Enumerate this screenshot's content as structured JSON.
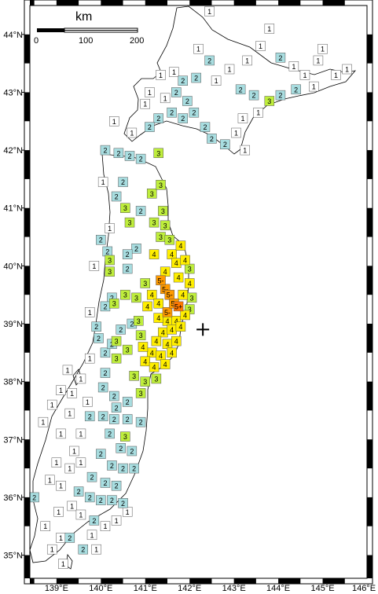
{
  "map": {
    "lat_labels": [
      "44°N",
      "43°N",
      "42°N",
      "41°N",
      "40°N",
      "39°N",
      "38°N",
      "37°N",
      "36°N",
      "35°N"
    ],
    "lon_labels": [
      "139°E",
      "140°E",
      "141°E",
      "142°E",
      "143°E",
      "144°E",
      "145°E",
      "146°E"
    ],
    "lat_range": [
      34.6,
      44.5
    ],
    "lon_range": [
      138.4,
      146.0
    ]
  },
  "scale_bar": {
    "title": "km",
    "labels": [
      "0",
      "100",
      "200"
    ]
  },
  "epicenter": {
    "lon": 142.3,
    "lat": 38.9
  },
  "intensity_colors": {
    "1": "#ffffff",
    "2": "#a8dde0",
    "3": "#bfee3c",
    "4": "#ffee00",
    "5-": "#ff9a00",
    "5+": "#ff7800"
  },
  "stations": [
    {
      "lon": 141.45,
      "lat": 39.6,
      "i": "5-"
    },
    {
      "lon": 141.55,
      "lat": 39.5,
      "i": "5-"
    },
    {
      "lon": 141.5,
      "lat": 39.2,
      "i": "5-"
    },
    {
      "lon": 141.75,
      "lat": 39.3,
      "i": "5+"
    },
    {
      "lon": 141.65,
      "lat": 39.35,
      "i": "5-"
    },
    {
      "lon": 141.35,
      "lat": 39.75,
      "i": "5-"
    },
    {
      "lon": 141.6,
      "lat": 40.2,
      "i": "4"
    },
    {
      "lon": 141.8,
      "lat": 40.35,
      "i": "4"
    },
    {
      "lon": 141.7,
      "lat": 40.05,
      "i": "4"
    },
    {
      "lon": 141.9,
      "lat": 40.1,
      "i": "4"
    },
    {
      "lon": 141.45,
      "lat": 39.9,
      "i": "4"
    },
    {
      "lon": 141.75,
      "lat": 39.8,
      "i": "4"
    },
    {
      "lon": 142.0,
      "lat": 39.7,
      "i": "4"
    },
    {
      "lon": 141.5,
      "lat": 39.05,
      "i": "4"
    },
    {
      "lon": 141.3,
      "lat": 39.1,
      "i": "4"
    },
    {
      "lon": 141.7,
      "lat": 39.05,
      "i": "4"
    },
    {
      "lon": 141.9,
      "lat": 39.15,
      "i": "4"
    },
    {
      "lon": 141.4,
      "lat": 38.85,
      "i": "4"
    },
    {
      "lon": 141.6,
      "lat": 38.9,
      "i": "4"
    },
    {
      "lon": 141.8,
      "lat": 38.95,
      "i": "4"
    },
    {
      "lon": 141.25,
      "lat": 38.7,
      "i": "4"
    },
    {
      "lon": 141.5,
      "lat": 38.65,
      "i": "4"
    },
    {
      "lon": 141.7,
      "lat": 38.7,
      "i": "4"
    },
    {
      "lon": 141.15,
      "lat": 38.5,
      "i": "4"
    },
    {
      "lon": 141.35,
      "lat": 38.45,
      "i": "4"
    },
    {
      "lon": 141.6,
      "lat": 38.5,
      "i": "4"
    },
    {
      "lon": 141.0,
      "lat": 38.35,
      "i": "4"
    },
    {
      "lon": 141.2,
      "lat": 38.25,
      "i": "4"
    },
    {
      "lon": 141.45,
      "lat": 38.3,
      "i": "4"
    },
    {
      "lon": 141.05,
      "lat": 39.3,
      "i": "4"
    },
    {
      "lon": 141.2,
      "lat": 40.2,
      "i": "4"
    },
    {
      "lon": 141.85,
      "lat": 39.5,
      "i": "4"
    },
    {
      "lon": 141.15,
      "lat": 39.5,
      "i": "4"
    },
    {
      "lon": 141.3,
      "lat": 39.35,
      "i": "4"
    },
    {
      "lon": 140.95,
      "lat": 38.6,
      "i": "4"
    },
    {
      "lon": 141.35,
      "lat": 40.5,
      "i": "3"
    },
    {
      "lon": 141.2,
      "lat": 40.75,
      "i": "3"
    },
    {
      "lon": 141.4,
      "lat": 40.95,
      "i": "3"
    },
    {
      "lon": 141.15,
      "lat": 41.25,
      "i": "3"
    },
    {
      "lon": 141.35,
      "lat": 41.4,
      "i": "3"
    },
    {
      "lon": 141.3,
      "lat": 41.95,
      "i": "3"
    },
    {
      "lon": 140.55,
      "lat": 41.0,
      "i": "3"
    },
    {
      "lon": 140.65,
      "lat": 40.75,
      "i": "3"
    },
    {
      "lon": 141.45,
      "lat": 40.7,
      "i": "3"
    },
    {
      "lon": 140.2,
      "lat": 40.1,
      "i": "3"
    },
    {
      "lon": 140.2,
      "lat": 39.9,
      "i": "3"
    },
    {
      "lon": 140.55,
      "lat": 39.5,
      "i": "3"
    },
    {
      "lon": 140.8,
      "lat": 39.45,
      "i": "3"
    },
    {
      "lon": 140.3,
      "lat": 39.35,
      "i": "3"
    },
    {
      "lon": 141.0,
      "lat": 39.7,
      "i": "3"
    },
    {
      "lon": 142.0,
      "lat": 39.95,
      "i": "3"
    },
    {
      "lon": 142.05,
      "lat": 39.45,
      "i": "3"
    },
    {
      "lon": 142.0,
      "lat": 39.25,
      "i": "3"
    },
    {
      "lon": 140.85,
      "lat": 39.05,
      "i": "3"
    },
    {
      "lon": 140.9,
      "lat": 38.8,
      "i": "3"
    },
    {
      "lon": 140.6,
      "lat": 38.55,
      "i": "3"
    },
    {
      "lon": 140.35,
      "lat": 38.4,
      "i": "3"
    },
    {
      "lon": 140.75,
      "lat": 38.1,
      "i": "3"
    },
    {
      "lon": 141.0,
      "lat": 38.0,
      "i": "3"
    },
    {
      "lon": 140.9,
      "lat": 37.8,
      "i": "3"
    },
    {
      "lon": 140.55,
      "lat": 37.05,
      "i": "3"
    },
    {
      "lon": 143.8,
      "lat": 42.85,
      "i": "3"
    },
    {
      "lon": 141.55,
      "lat": 40.45,
      "i": "3"
    },
    {
      "lon": 141.25,
      "lat": 38.05,
      "i": "3"
    },
    {
      "lon": 140.35,
      "lat": 38.7,
      "i": "3"
    },
    {
      "lon": 140.1,
      "lat": 42.0,
      "i": "2"
    },
    {
      "lon": 140.4,
      "lat": 41.95,
      "i": "2"
    },
    {
      "lon": 140.65,
      "lat": 41.9,
      "i": "2"
    },
    {
      "lon": 140.9,
      "lat": 41.85,
      "i": "2"
    },
    {
      "lon": 140.5,
      "lat": 41.45,
      "i": "2"
    },
    {
      "lon": 140.35,
      "lat": 41.2,
      "i": "2"
    },
    {
      "lon": 140.0,
      "lat": 40.45,
      "i": "2"
    },
    {
      "lon": 140.15,
      "lat": 40.25,
      "i": "2"
    },
    {
      "lon": 140.25,
      "lat": 39.45,
      "i": "2"
    },
    {
      "lon": 140.1,
      "lat": 39.3,
      "i": "2"
    },
    {
      "lon": 139.9,
      "lat": 38.95,
      "i": "2"
    },
    {
      "lon": 139.95,
      "lat": 38.75,
      "i": "2"
    },
    {
      "lon": 140.1,
      "lat": 38.5,
      "i": "2"
    },
    {
      "lon": 140.1,
      "lat": 38.15,
      "i": "2"
    },
    {
      "lon": 140.05,
      "lat": 37.9,
      "i": "2"
    },
    {
      "lon": 140.3,
      "lat": 37.75,
      "i": "2"
    },
    {
      "lon": 139.75,
      "lat": 37.4,
      "i": "2"
    },
    {
      "lon": 140.05,
      "lat": 37.4,
      "i": "2"
    },
    {
      "lon": 140.3,
      "lat": 37.35,
      "i": "2"
    },
    {
      "lon": 140.6,
      "lat": 37.35,
      "i": "2"
    },
    {
      "lon": 140.9,
      "lat": 37.3,
      "i": "2"
    },
    {
      "lon": 140.2,
      "lat": 37.1,
      "i": "2"
    },
    {
      "lon": 140.45,
      "lat": 36.85,
      "i": "2"
    },
    {
      "lon": 140.7,
      "lat": 36.8,
      "i": "2"
    },
    {
      "lon": 140.0,
      "lat": 36.75,
      "i": "2"
    },
    {
      "lon": 140.25,
      "lat": 36.55,
      "i": "2"
    },
    {
      "lon": 140.5,
      "lat": 36.5,
      "i": "2"
    },
    {
      "lon": 140.75,
      "lat": 36.5,
      "i": "2"
    },
    {
      "lon": 139.8,
      "lat": 36.35,
      "i": "2"
    },
    {
      "lon": 140.1,
      "lat": 36.25,
      "i": "2"
    },
    {
      "lon": 140.35,
      "lat": 36.2,
      "i": "2"
    },
    {
      "lon": 139.5,
      "lat": 36.1,
      "i": "2"
    },
    {
      "lon": 139.75,
      "lat": 36.0,
      "i": "2"
    },
    {
      "lon": 140.0,
      "lat": 35.95,
      "i": "2"
    },
    {
      "lon": 140.25,
      "lat": 35.95,
      "i": "2"
    },
    {
      "lon": 140.5,
      "lat": 35.9,
      "i": "2"
    },
    {
      "lon": 138.5,
      "lat": 36.0,
      "i": "2"
    },
    {
      "lon": 139.3,
      "lat": 35.3,
      "i": "2"
    },
    {
      "lon": 139.6,
      "lat": 35.1,
      "i": "2"
    },
    {
      "lon": 140.6,
      "lat": 39.95,
      "i": "2"
    },
    {
      "lon": 140.8,
      "lat": 40.3,
      "i": "2"
    },
    {
      "lon": 140.9,
      "lat": 40.95,
      "i": "2"
    },
    {
      "lon": 140.6,
      "lat": 40.2,
      "i": "2"
    },
    {
      "lon": 141.6,
      "lat": 42.65,
      "i": "2"
    },
    {
      "lon": 141.85,
      "lat": 42.55,
      "i": "2"
    },
    {
      "lon": 142.1,
      "lat": 42.65,
      "i": "2"
    },
    {
      "lon": 142.35,
      "lat": 42.4,
      "i": "2"
    },
    {
      "lon": 142.5,
      "lat": 42.2,
      "i": "2"
    },
    {
      "lon": 142.8,
      "lat": 42.1,
      "i": "2"
    },
    {
      "lon": 141.95,
      "lat": 42.85,
      "i": "2"
    },
    {
      "lon": 141.7,
      "lat": 43.0,
      "i": "2"
    },
    {
      "lon": 141.85,
      "lat": 43.2,
      "i": "2"
    },
    {
      "lon": 142.15,
      "lat": 43.25,
      "i": "2"
    },
    {
      "lon": 142.45,
      "lat": 43.55,
      "i": "2"
    },
    {
      "lon": 143.15,
      "lat": 43.05,
      "i": "2"
    },
    {
      "lon": 143.45,
      "lat": 42.95,
      "i": "2"
    },
    {
      "lon": 144.05,
      "lat": 42.95,
      "i": "2"
    },
    {
      "lon": 144.4,
      "lat": 43.05,
      "i": "2"
    },
    {
      "lon": 144.05,
      "lat": 43.6,
      "i": "2"
    },
    {
      "lon": 141.3,
      "lat": 42.55,
      "i": "2"
    },
    {
      "lon": 141.1,
      "lat": 42.4,
      "i": "2"
    },
    {
      "lon": 140.7,
      "lat": 39.0,
      "i": "2"
    },
    {
      "lon": 140.45,
      "lat": 38.9,
      "i": "2"
    },
    {
      "lon": 140.6,
      "lat": 37.65,
      "i": "2"
    },
    {
      "lon": 140.25,
      "lat": 38.65,
      "i": "2"
    },
    {
      "lon": 140.35,
      "lat": 37.55,
      "i": "2"
    },
    {
      "lon": 139.85,
      "lat": 35.6,
      "i": "2"
    },
    {
      "lon": 142.6,
      "lat": 43.2,
      "i": "1"
    },
    {
      "lon": 142.9,
      "lat": 43.4,
      "i": "1"
    },
    {
      "lon": 143.3,
      "lat": 43.55,
      "i": "1"
    },
    {
      "lon": 143.6,
      "lat": 43.8,
      "i": "1"
    },
    {
      "lon": 144.35,
      "lat": 43.45,
      "i": "1"
    },
    {
      "lon": 144.6,
      "lat": 43.3,
      "i": "1"
    },
    {
      "lon": 144.9,
      "lat": 43.55,
      "i": "1"
    },
    {
      "lon": 145.3,
      "lat": 43.3,
      "i": "1"
    },
    {
      "lon": 145.55,
      "lat": 43.4,
      "i": "1"
    },
    {
      "lon": 143.8,
      "lat": 44.1,
      "i": "1"
    },
    {
      "lon": 142.45,
      "lat": 44.4,
      "i": "1"
    },
    {
      "lon": 142.2,
      "lat": 43.75,
      "i": "1"
    },
    {
      "lon": 141.65,
      "lat": 43.35,
      "i": "1"
    },
    {
      "lon": 141.45,
      "lat": 42.9,
      "i": "1"
    },
    {
      "lon": 143.05,
      "lat": 42.3,
      "i": "1"
    },
    {
      "lon": 143.25,
      "lat": 42.0,
      "i": "1"
    },
    {
      "lon": 143.2,
      "lat": 42.55,
      "i": "1"
    },
    {
      "lon": 143.55,
      "lat": 42.65,
      "i": "1"
    },
    {
      "lon": 144.8,
      "lat": 43.1,
      "i": "1"
    },
    {
      "lon": 145.0,
      "lat": 43.75,
      "i": "1"
    },
    {
      "lon": 140.3,
      "lat": 42.5,
      "i": "1"
    },
    {
      "lon": 140.7,
      "lat": 42.3,
      "i": "1"
    },
    {
      "lon": 139.85,
      "lat": 40.0,
      "i": "1"
    },
    {
      "lon": 140.2,
      "lat": 40.65,
      "i": "1"
    },
    {
      "lon": 139.75,
      "lat": 38.4,
      "i": "1"
    },
    {
      "lon": 139.55,
      "lat": 38.05,
      "i": "1"
    },
    {
      "lon": 139.35,
      "lat": 37.8,
      "i": "1"
    },
    {
      "lon": 139.7,
      "lat": 37.65,
      "i": "1"
    },
    {
      "lon": 139.3,
      "lat": 37.45,
      "i": "1"
    },
    {
      "lon": 139.55,
      "lat": 37.1,
      "i": "1"
    },
    {
      "lon": 139.1,
      "lat": 37.1,
      "i": "1"
    },
    {
      "lon": 139.4,
      "lat": 36.8,
      "i": "1"
    },
    {
      "lon": 139.0,
      "lat": 36.6,
      "i": "1"
    },
    {
      "lon": 139.3,
      "lat": 36.5,
      "i": "1"
    },
    {
      "lon": 139.55,
      "lat": 36.6,
      "i": "1"
    },
    {
      "lon": 138.85,
      "lat": 36.3,
      "i": "1"
    },
    {
      "lon": 139.1,
      "lat": 36.2,
      "i": "1"
    },
    {
      "lon": 139.35,
      "lat": 35.85,
      "i": "1"
    },
    {
      "lon": 139.05,
      "lat": 35.75,
      "i": "1"
    },
    {
      "lon": 139.55,
      "lat": 35.7,
      "i": "1"
    },
    {
      "lon": 139.8,
      "lat": 35.35,
      "i": "1"
    },
    {
      "lon": 140.1,
      "lat": 35.5,
      "i": "1"
    },
    {
      "lon": 140.35,
      "lat": 35.6,
      "i": "1"
    },
    {
      "lon": 140.6,
      "lat": 35.75,
      "i": "1"
    },
    {
      "lon": 139.1,
      "lat": 35.3,
      "i": "1"
    },
    {
      "lon": 138.9,
      "lat": 35.1,
      "i": "1"
    },
    {
      "lon": 139.15,
      "lat": 34.85,
      "i": "1"
    },
    {
      "lon": 138.75,
      "lat": 35.5,
      "i": "1"
    },
    {
      "lon": 139.9,
      "lat": 35.1,
      "i": "1"
    },
    {
      "lon": 138.7,
      "lat": 37.3,
      "i": "1"
    },
    {
      "lon": 138.9,
      "lat": 37.6,
      "i": "1"
    },
    {
      "lon": 139.1,
      "lat": 37.85,
      "i": "1"
    },
    {
      "lon": 139.25,
      "lat": 38.2,
      "i": "1"
    },
    {
      "lon": 139.75,
      "lat": 39.2,
      "i": "1"
    },
    {
      "lon": 140.05,
      "lat": 41.45,
      "i": "1"
    },
    {
      "lon": 141.1,
      "lat": 43.0,
      "i": "1"
    },
    {
      "lon": 141.35,
      "lat": 43.3,
      "i": "1"
    },
    {
      "lon": 141.0,
      "lat": 42.8,
      "i": "1"
    }
  ]
}
